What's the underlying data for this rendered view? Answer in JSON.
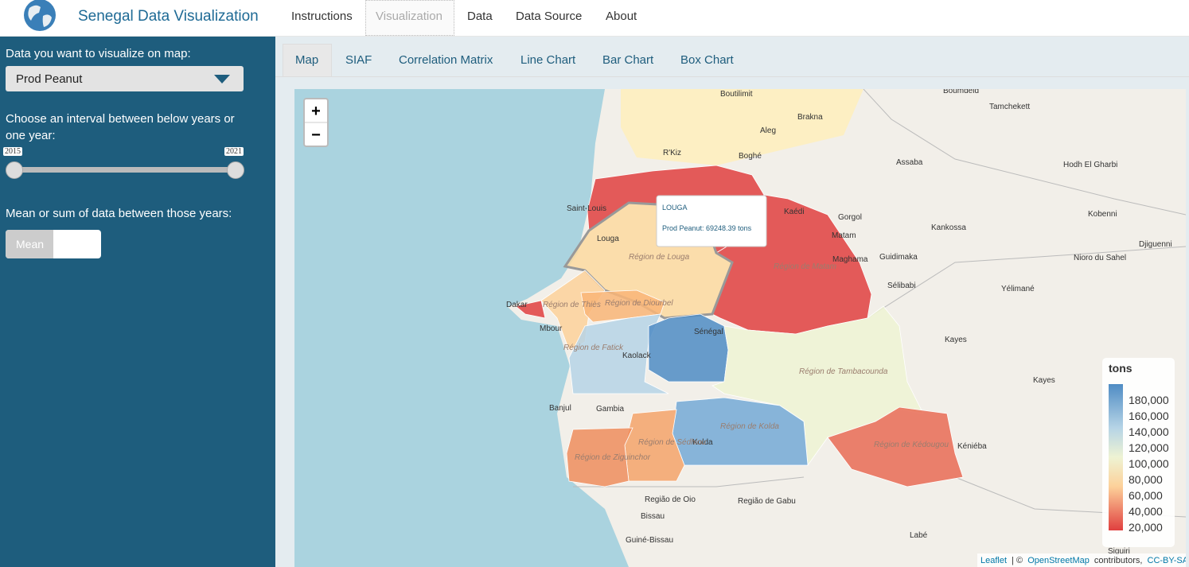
{
  "navbar": {
    "title": "Senegal Data Visualization",
    "items": [
      "Instructions",
      "Visualization",
      "Data",
      "Data Source",
      "About"
    ],
    "active": 1
  },
  "sidebar": {
    "select_label": "Data you want to visualize on map:",
    "select_value": "Prod Peanut",
    "slider_label": "Choose an interval between below years or one year:",
    "slider_min": 2015,
    "slider_max": 2021,
    "toggle_label": "Mean or sum of data between those years:",
    "toggle_value": "Mean"
  },
  "tabs": {
    "items": [
      "Map",
      "SIAF",
      "Correlation Matrix",
      "Line Chart",
      "Bar Chart",
      "Box Chart"
    ],
    "active": 0
  },
  "map": {
    "zoom_in": "+",
    "zoom_out": "−",
    "tooltip": {
      "region": "LOUGA",
      "text": "Prod Peanut: 69248.39 tons"
    },
    "legend": {
      "title": "tons",
      "labels": [
        "180,000",
        "160,000",
        "140,000",
        "120,000",
        "100,000",
        "80,000",
        "60,000",
        "40,000",
        "20,000"
      ]
    },
    "attribution": {
      "leaflet": "Leaflet",
      "sep": "| ©",
      "osm": "OpenStreetMap",
      "contrib": "contributors,",
      "license": "CC-BY-SA"
    },
    "place_labels": [
      "Boutilimit",
      "Brakna",
      "Aleg",
      "R'Kiz",
      "Boghé",
      "Saint-Louis",
      "Louga",
      "Région de Louga",
      "Région de Matam",
      "Matam",
      "Kaédi",
      "Gorgol",
      "Maghama",
      "Guidimaka",
      "Sélibabi",
      "Kankossa",
      "Kobenni",
      "Djiguenni",
      "Nioro du Sahel",
      "Yélimané",
      "Assaba",
      "Tamchekett",
      "Hodh El Gharbi",
      "Dakar",
      "Mbour",
      "Région de Thiès",
      "Région de Diourbel",
      "Région de Fatick",
      "Kaolack",
      "Sénégal",
      "Région de Tambacounda",
      "Kayes",
      "Kayes",
      "Banjul",
      "Gambia",
      "Région de Kolda",
      "Kolda",
      "Région de Sédhiou",
      "Région de Ziguinchor",
      "Région de Kédougou",
      "Kéniéba",
      "Região de Oio",
      "Região de Gabu",
      "Bissau",
      "Guiné-Bissau",
      "Labé",
      "Siguiri",
      "Boumdeid"
    ]
  }
}
